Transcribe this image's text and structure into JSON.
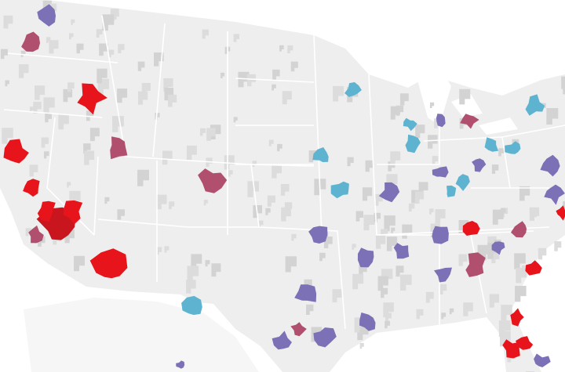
{
  "map": {
    "colors": [
      "#e8141b",
      "#c8151e",
      "#b1506e",
      "#7c70b6",
      "#5eb3d1"
    ]
  }
}
